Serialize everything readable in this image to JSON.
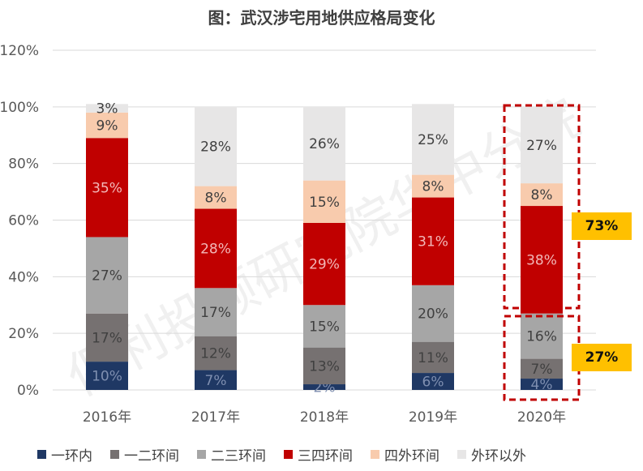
{
  "title": "图：武汉涉宅用地供应格局变化",
  "watermark": "保利投顾研究院华中分院",
  "callouts": [
    "73%",
    "27%"
  ],
  "colors": {
    "一环内": "#1f3864",
    "一二环间": "#767171",
    "二三环间": "#a6a6a6",
    "三四环间": "#c00000",
    "四外环间": "#f8cbad",
    "外环以外": "#e7e6e6",
    "highlight_box": "#c00000",
    "callout_bg": "#ffc000"
  },
  "chart_data": {
    "type": "bar",
    "stacked": true,
    "categories": [
      "2016年",
      "2017年",
      "2018年",
      "2019年",
      "2020年"
    ],
    "series": [
      {
        "name": "一环内",
        "values": [
          10,
          7,
          2,
          6,
          4
        ],
        "labels": [
          "10%",
          "7%",
          "2%",
          "6%",
          "4%"
        ]
      },
      {
        "name": "一二环间",
        "values": [
          17,
          12,
          13,
          11,
          7
        ],
        "labels": [
          "17%",
          "12%",
          "13%",
          "11%",
          "7%"
        ]
      },
      {
        "name": "二三环间",
        "values": [
          27,
          17,
          15,
          20,
          16
        ],
        "labels": [
          "27%",
          "17%",
          "15%",
          "20%",
          "16%"
        ]
      },
      {
        "name": "三四环间",
        "values": [
          35,
          28,
          29,
          31,
          38
        ],
        "labels": [
          "35%",
          "28%",
          "29%",
          "31%",
          "38%"
        ]
      },
      {
        "name": "四外环间",
        "values": [
          9,
          8,
          15,
          8,
          8
        ],
        "labels": [
          "9%",
          "8%",
          "15%",
          "8%",
          "8%"
        ]
      },
      {
        "name": "外环以外",
        "values": [
          3,
          28,
          26,
          25,
          27
        ],
        "labels": [
          "3%",
          "28%",
          "26%",
          "25%",
          "27%"
        ]
      }
    ],
    "yticks": [
      "0%",
      "20%",
      "40%",
      "60%",
      "80%",
      "100%",
      "120%"
    ],
    "ylim": [
      0,
      120
    ],
    "grid": true,
    "legend_position": "bottom"
  }
}
